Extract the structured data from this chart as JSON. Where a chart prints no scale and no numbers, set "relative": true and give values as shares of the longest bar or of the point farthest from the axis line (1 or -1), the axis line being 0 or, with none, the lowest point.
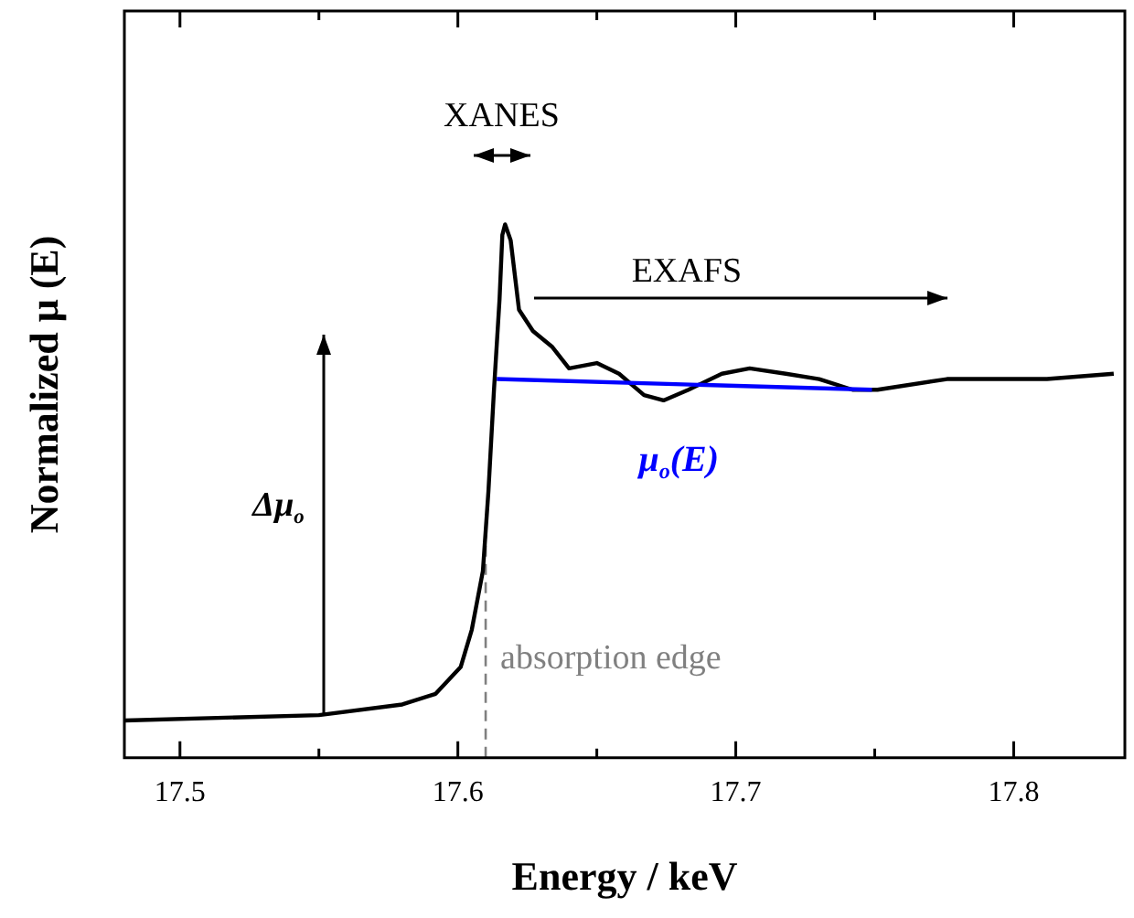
{
  "chart_data": {
    "type": "line",
    "xlabel": "Energy / keV",
    "ylabel": "Normalized μ (E)",
    "relative": true,
    "xlim": [
      17.48,
      17.84
    ],
    "xticks": [
      17.5,
      {
        "value": 17.55,
        "label": null
      },
      17.6,
      {
        "value": 17.65,
        "label": null
      },
      17.7,
      {
        "value": 17.75,
        "label": null
      },
      17.8
    ],
    "series": [
      {
        "color": "#000000",
        "x": [
          17.48,
          17.55,
          17.58,
          17.592,
          17.601,
          17.605,
          17.609,
          17.611,
          17.613,
          17.615,
          17.616,
          17.617,
          17.619,
          17.622,
          17.627,
          17.634,
          17.64,
          17.65,
          17.658,
          17.667,
          17.674,
          17.683,
          17.695,
          17.705,
          17.718,
          17.73,
          17.742,
          17.751,
          17.776,
          17.812,
          17.836
        ],
        "values": [
          0.07,
          0.08,
          0.1,
          0.12,
          0.17,
          0.24,
          0.35,
          0.5,
          0.69,
          0.86,
          0.98,
          1,
          0.97,
          0.84,
          0.8,
          0.77,
          0.73,
          0.74,
          0.72,
          0.68,
          0.67,
          0.69,
          0.72,
          0.73,
          0.72,
          0.71,
          0.69,
          0.69,
          0.71,
          0.71,
          0.72
        ]
      },
      {
        "name": "μ$_{o}$(E)",
        "color": "#0000ff",
        "x": [
          17.614,
          17.749
        ],
        "values": [
          0.71,
          0.69
        ]
      }
    ],
    "ref_lines": [
      {
        "axis": "x",
        "value": 17.61,
        "label": "absorption edge",
        "color": "#808080",
        "line_style": "dashed"
      }
    ],
    "annotations": [
      "XANES",
      "EXAFS",
      "Δμ$_{o}$"
    ],
    "legend": false,
    "grid": false,
    "line_style": "solid",
    "marker": "none"
  }
}
